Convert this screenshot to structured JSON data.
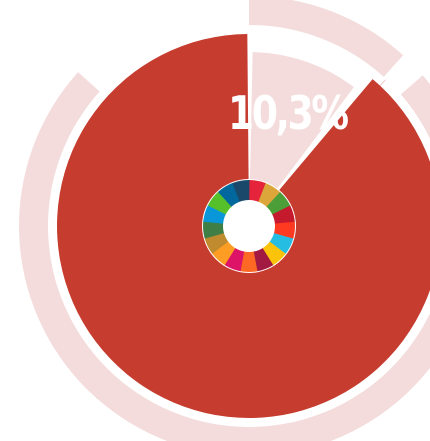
{
  "chart_data": {
    "type": "pie",
    "value_label": "10,3%",
    "slices": [
      {
        "value": 10.3,
        "color": "#f3dcdb"
      },
      {
        "value": 89.7,
        "color": "#c63c2f"
      }
    ],
    "highlight_wedge_color": "#c63c2f",
    "outer_ring_color": "#f3dcdb",
    "sdg_wheel_colors": [
      "#e5243b",
      "#dda63a",
      "#4c9f38",
      "#c5192d",
      "#ff3a21",
      "#26bde2",
      "#fcc30b",
      "#a21942",
      "#fd6925",
      "#dd1367",
      "#fd9d24",
      "#bf8b2e",
      "#3f7e44",
      "#0a97d9",
      "#56c02b",
      "#00689d",
      "#19486a"
    ]
  }
}
